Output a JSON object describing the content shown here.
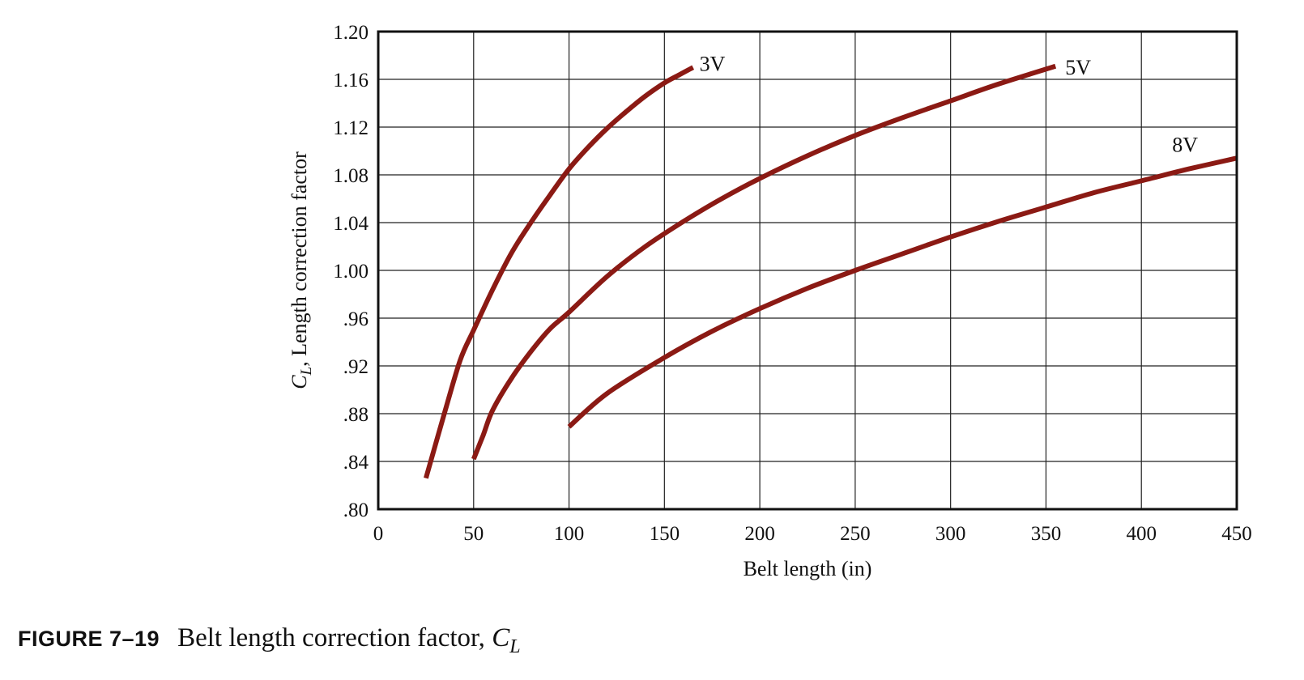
{
  "chart_data": {
    "type": "line",
    "title": "",
    "xlabel": "Belt length (in)",
    "ylabel": {
      "symbol": "C",
      "subscript": "L",
      "text": ", Length correction factor"
    },
    "xlim": [
      0,
      450
    ],
    "ylim": [
      0.8,
      1.2
    ],
    "x_ticks": [
      0,
      50,
      100,
      150,
      200,
      250,
      300,
      350,
      400,
      450
    ],
    "x_tick_labels": [
      "0",
      "50",
      "100",
      "150",
      "200",
      "250",
      "300",
      "350",
      "400",
      "450"
    ],
    "y_ticks": [
      0.8,
      0.84,
      0.88,
      0.92,
      0.96,
      1.0,
      1.04,
      1.08,
      1.12,
      1.16,
      1.2
    ],
    "y_tick_labels": [
      ".80",
      ".84",
      ".88",
      ".92",
      ".96",
      "1.00",
      "1.04",
      "1.08",
      "1.12",
      "1.16",
      "1.20"
    ],
    "grid": true,
    "line_color": "#8b1a14",
    "series": [
      {
        "name": "3V",
        "x": [
          25,
          35,
          43,
          50,
          60,
          70,
          80,
          90,
          100,
          110,
          120,
          130,
          140,
          150,
          158,
          165
        ],
        "y": [
          0.826,
          0.882,
          0.925,
          0.95,
          0.984,
          1.015,
          1.04,
          1.063,
          1.085,
          1.103,
          1.119,
          1.133,
          1.146,
          1.157,
          1.164,
          1.17
        ]
      },
      {
        "name": "5V",
        "x": [
          50,
          55,
          60,
          70,
          80,
          90,
          100,
          120,
          140,
          160,
          180,
          200,
          225,
          250,
          275,
          300,
          325,
          355
        ],
        "y": [
          0.842,
          0.862,
          0.883,
          0.91,
          0.932,
          0.951,
          0.965,
          0.995,
          1.02,
          1.041,
          1.06,
          1.077,
          1.096,
          1.113,
          1.128,
          1.142,
          1.156,
          1.171
        ]
      },
      {
        "name": "8V",
        "x": [
          100,
          120,
          150,
          175,
          200,
          225,
          250,
          275,
          300,
          325,
          350,
          375,
          400,
          425,
          450
        ],
        "y": [
          0.869,
          0.897,
          0.927,
          0.949,
          0.968,
          0.985,
          1.0,
          1.014,
          1.028,
          1.041,
          1.053,
          1.065,
          1.075,
          1.085,
          1.094
        ]
      }
    ]
  },
  "caption": {
    "label": "FIGURE 7–19",
    "text": "Belt length correction factor, ",
    "symbol": "C",
    "subscript": "L"
  }
}
